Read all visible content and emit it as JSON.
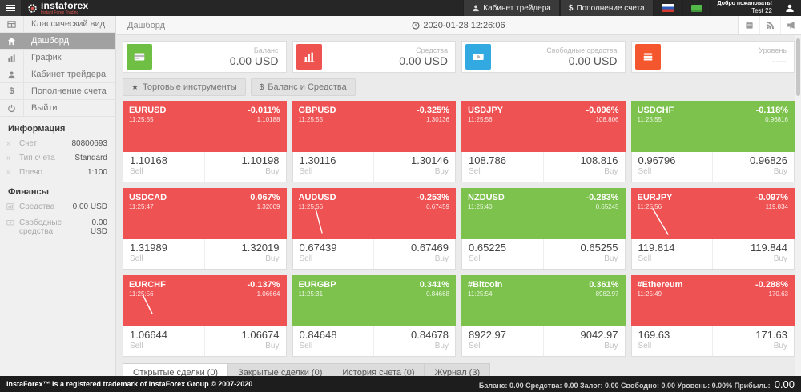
{
  "topbar": {
    "logo_name": "instaforex",
    "logo_tagline": "Instant Forex Trading",
    "cabinet_label": "Кабинет трейдера",
    "deposit_label": "Пополнение счета",
    "welcome": "Добро пожаловать!",
    "username": "Test 22"
  },
  "icons": {
    "star": "★",
    "dollar": "$",
    "angle": "»"
  },
  "sidebar": {
    "items": [
      {
        "label": "Классический вид",
        "icon": "classic-view",
        "active": false
      },
      {
        "label": "Дашборд",
        "icon": "dashboard",
        "active": true
      },
      {
        "label": "График",
        "icon": "chart",
        "active": false
      },
      {
        "label": "Кабинет трейдера",
        "icon": "user",
        "active": false
      },
      {
        "label": "Пополнение счета",
        "icon": "dollar",
        "active": false
      },
      {
        "label": "Выйти",
        "icon": "power",
        "active": false
      }
    ],
    "info_title": "Информация",
    "info_rows": [
      {
        "label": "Счет",
        "value": "80800693",
        "icon": "angle"
      },
      {
        "label": "Тип счета",
        "value": "Standard",
        "icon": "angle"
      },
      {
        "label": "Плечо",
        "value": "1:100",
        "icon": "angle"
      }
    ],
    "finance_title": "Финансы",
    "finance_rows": [
      {
        "label": "Средства",
        "value": "0.00 USD",
        "icon": "mini-chart"
      },
      {
        "label": "Свободные средства",
        "value": "0.00 USD",
        "icon": "mini-banknote"
      }
    ]
  },
  "breadcrumb": "Дашборд",
  "datetime": "2020-01-28 12:26:06",
  "stat_cards": [
    {
      "label": "Баланс",
      "value": "0.00 USD",
      "color": "#6fbf44",
      "icon": "credit-card"
    },
    {
      "label": "Средства",
      "value": "0.00 USD",
      "color": "#ef5350",
      "icon": "bar-chart"
    },
    {
      "label": "Свободные средства",
      "value": "0.00 USD",
      "color": "#32a9e0",
      "icon": "banknote"
    },
    {
      "label": "Уровень",
      "value": "----",
      "color": "#f4572e",
      "icon": "list"
    }
  ],
  "toolbar": {
    "instruments_label": "Торговые инструменты",
    "balance_label": "Баланс и Средства"
  },
  "labels": {
    "sell": "Sell",
    "buy": "Buy"
  },
  "tiles": [
    {
      "symbol": "EURUSD",
      "time": "11:25:55",
      "change": "-0.011%",
      "last": "1.10188",
      "sell": "1.10168",
      "buy": "1.10198",
      "color": "red",
      "spark": null
    },
    {
      "symbol": "GBPUSD",
      "time": "11:25:55",
      "change": "-0.325%",
      "last": "1.30136",
      "sell": "1.30116",
      "buy": "1.30146",
      "color": "red",
      "spark": null
    },
    {
      "symbol": "USDJPY",
      "time": "11:25:56",
      "change": "-0.096%",
      "last": "108.806",
      "sell": "108.786",
      "buy": "108.816",
      "color": "red",
      "spark": null
    },
    {
      "symbol": "USDCHF",
      "time": "11:25:55",
      "change": "-0.118%",
      "last": "0.96816",
      "sell": "0.96796",
      "buy": "0.96826",
      "color": "green",
      "spark": null
    },
    {
      "symbol": "USDCAD",
      "time": "11:25:47",
      "change": "0.067%",
      "last": "1.32009",
      "sell": "1.31989",
      "buy": "1.32019",
      "color": "red",
      "spark": null
    },
    {
      "symbol": "AUDUSD",
      "time": "11:25:56",
      "change": "-0.253%",
      "last": "0.67459",
      "sell": "0.67439",
      "buy": "0.67469",
      "color": "red",
      "spark": [
        7,
        2,
        15,
        32
      ]
    },
    {
      "symbol": "NZDUSD",
      "time": "11:25:40",
      "change": "-0.283%",
      "last": "0.65245",
      "sell": "0.65225",
      "buy": "0.65255",
      "color": "green",
      "spark": null
    },
    {
      "symbol": "EURJPY",
      "time": "11:25:56",
      "change": "-0.097%",
      "last": "119.834",
      "sell": "119.814",
      "buy": "119.844",
      "color": "red",
      "spark": [
        5,
        2,
        24,
        34
      ]
    },
    {
      "symbol": "EURCHF",
      "time": "11:25:56",
      "change": "-0.137%",
      "last": "1.06664",
      "sell": "1.06644",
      "buy": "1.06674",
      "color": "red",
      "spark": [
        4,
        2,
        15,
        24
      ]
    },
    {
      "symbol": "EURGBP",
      "time": "11:25:31",
      "change": "0.341%",
      "last": "0.84668",
      "sell": "0.84648",
      "buy": "0.84678",
      "color": "green",
      "spark": null
    },
    {
      "symbol": "#Bitcoin",
      "time": "11:25:54",
      "change": "0.361%",
      "last": "8982.97",
      "sell": "8922.97",
      "buy": "9042.97",
      "color": "green",
      "spark": null
    },
    {
      "symbol": "#Ethereum",
      "time": "11:25:49",
      "change": "-0.288%",
      "last": "170.63",
      "sell": "169.63",
      "buy": "171.63",
      "color": "red",
      "spark": null
    }
  ],
  "tabs": [
    {
      "label": "Открытые сделки (0)",
      "active": true
    },
    {
      "label": "Закрытые сделки (0)",
      "active": false
    },
    {
      "label": "История счета (0)",
      "active": false
    },
    {
      "label": "Журнал (3)",
      "active": false
    }
  ],
  "footer": {
    "copyright": "InstaForex™ is a registered trademark of InstaForex Group © 2007-2020",
    "summary": "Баланс: 0.00 Средства: 0.00 Залог: 0.00 Свободно: 0.00 Уровень: 0.00% Прибыль:",
    "profit": "0.00"
  },
  "colors": {
    "tile_red": "#ef5253",
    "tile_green": "#7cc24c"
  }
}
